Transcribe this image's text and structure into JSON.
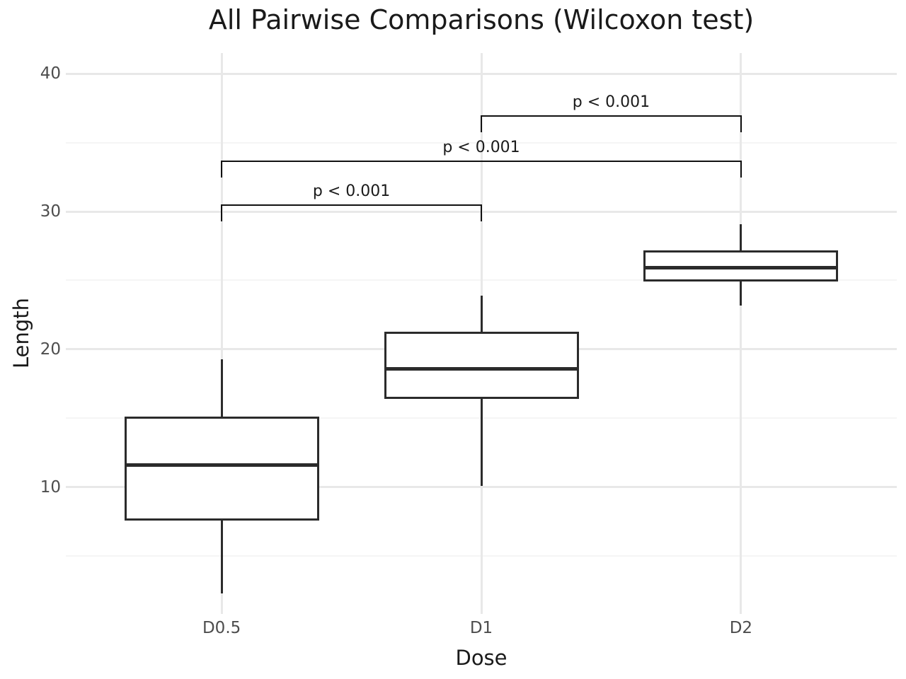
{
  "chart_data": {
    "type": "boxplot",
    "title": "All Pairwise Comparisons (Wilcoxon test)",
    "xlabel": "Dose",
    "ylabel": "Length",
    "categories": [
      "D0.5",
      "D1",
      "D2"
    ],
    "series": [
      {
        "name": "D0.5",
        "min": 2.3,
        "q1": 7.6,
        "median": 11.6,
        "q3": 15.1,
        "max": 19.3
      },
      {
        "name": "D1",
        "min": 10.1,
        "q1": 16.4,
        "median": 18.6,
        "q3": 21.3,
        "max": 23.9
      },
      {
        "name": "D2",
        "min": 23.2,
        "q1": 24.9,
        "median": 25.9,
        "q3": 27.2,
        "max": 29.1
      }
    ],
    "annotations": [
      {
        "label": "p < 0.001",
        "from": "D0.5",
        "to": "D1",
        "y": 30.5
      },
      {
        "label": "p < 0.001",
        "from": "D0.5",
        "to": "D2",
        "y": 33.7
      },
      {
        "label": "p < 0.001",
        "from": "D1",
        "to": "D2",
        "y": 37.0
      }
    ],
    "bracket_tick_drop": 1.25,
    "yticks": [
      40,
      30,
      20,
      10
    ],
    "yminor": [
      35,
      25,
      15,
      5
    ],
    "ylim": [
      0.8,
      41.5
    ],
    "grid": true,
    "legend": "none",
    "colors": {
      "background": "#ffffff",
      "box_stroke": "#2b2b2b",
      "box_fill": "#ffffff",
      "grid_major": "#e8e8e8",
      "grid_minor": "#f5f5f5",
      "bracket": "#111111",
      "text": "#1a1a1a",
      "tick_label": "#4d4d4d"
    }
  }
}
